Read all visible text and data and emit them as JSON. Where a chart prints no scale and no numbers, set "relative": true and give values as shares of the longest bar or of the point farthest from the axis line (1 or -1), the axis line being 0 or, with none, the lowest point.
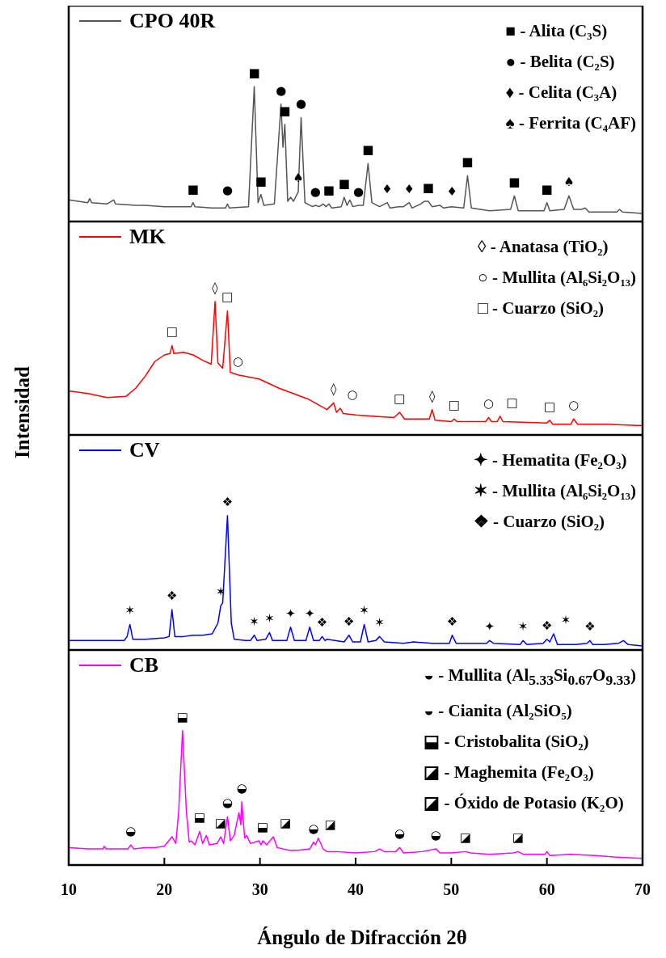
{
  "chart_data": [
    {
      "type": "line",
      "xlim": [
        10,
        70
      ],
      "relative": true,
      "legend": "top left",
      "tick_labels": false,
      "x": [
        10,
        11,
        12,
        12.2,
        12.4,
        14,
        14.7,
        14.9,
        17,
        18,
        20,
        22,
        22.8,
        23,
        23.2,
        25,
        26.4,
        26.6,
        26.8,
        28.8,
        29.4,
        29.8,
        30.1,
        30.4,
        31.5,
        32.2,
        32.4,
        32.6,
        32.9,
        33.2,
        33.5,
        34,
        34.3,
        34.7,
        35.5,
        35.8,
        36.2,
        36.6,
        36.9,
        37.2,
        37.5,
        38.5,
        38.8,
        39.1,
        39.4,
        39.7,
        40.3,
        40.8,
        41.3,
        41.7,
        42.5,
        43.3,
        43.6,
        44.5,
        45,
        45.6,
        45.9,
        46.8,
        47.2,
        47.6,
        48,
        48.8,
        49.2,
        50,
        51.3,
        51.7,
        52.1,
        54,
        56.2,
        56.6,
        57,
        59.7,
        60,
        60.3,
        61.8,
        62.3,
        62.8,
        63.6,
        64,
        64.4,
        67.3,
        67.6,
        67.9,
        70
      ],
      "series": [
        {
          "name": "CPO 40R",
          "color": "#555555",
          "values": [
            0.16,
            0.15,
            0.14,
            0.17,
            0.14,
            0.13,
            0.16,
            0.13,
            0.12,
            0.12,
            0.11,
            0.11,
            0.11,
            0.14,
            0.11,
            0.1,
            0.1,
            0.13,
            0.1,
            0.11,
            1,
            0.14,
            0.2,
            0.12,
            0.13,
            0.87,
            0.55,
            0.72,
            0.15,
            0.18,
            0.15,
            0.22,
            0.77,
            0.14,
            0.11,
            0.12,
            0.11,
            0.13,
            0.11,
            0.13,
            0.1,
            0.11,
            0.18,
            0.12,
            0.16,
            0.11,
            0.12,
            0.12,
            0.43,
            0.14,
            0.11,
            0.14,
            0.1,
            0.11,
            0.11,
            0.14,
            0.1,
            0.13,
            0.15,
            0.15,
            0.11,
            0.12,
            0.1,
            0.11,
            0.1,
            0.34,
            0.1,
            0.08,
            0.09,
            0.19,
            0.08,
            0.08,
            0.14,
            0.08,
            0.09,
            0.19,
            0.09,
            0.09,
            0.1,
            0.07,
            0.07,
            0.09,
            0.07,
            0.06
          ]
        }
      ],
      "annotations": [
        "■ - Alita (C₃S)",
        "● - Belita (C₂S)",
        "♦ - Celita (C₃A)",
        "♠ - Ferrita (C₄AF)",
        {
          "text": "■",
          "x": 23,
          "y": 0.14
        },
        {
          "text": "●",
          "x": 26.6,
          "y": 0.13
        },
        {
          "text": "■",
          "x": 29.4,
          "y": 1
        },
        {
          "text": "■",
          "x": 30.1,
          "y": 0.2
        },
        {
          "text": "●",
          "x": 32.2,
          "y": 0.87
        },
        {
          "text": "■",
          "x": 32.6,
          "y": 0.72
        },
        {
          "text": "♠",
          "x": 34,
          "y": 0.22
        },
        {
          "text": "●",
          "x": 34.3,
          "y": 0.77
        },
        {
          "text": "●",
          "x": 35.8,
          "y": 0.12
        },
        {
          "text": "■",
          "x": 37.2,
          "y": 0.13
        },
        {
          "text": "■",
          "x": 38.8,
          "y": 0.18
        },
        {
          "text": "●",
          "x": 40.3,
          "y": 0.12
        },
        {
          "text": "■",
          "x": 41.3,
          "y": 0.43
        },
        {
          "text": "♦",
          "x": 43.3,
          "y": 0.14
        },
        {
          "text": "♦",
          "x": 45.6,
          "y": 0.14
        },
        {
          "text": "■",
          "x": 47.6,
          "y": 0.15
        },
        {
          "text": "♦",
          "x": 48.8,
          "y": 0.12
        },
        {
          "text": "■",
          "x": 51.7,
          "y": 0.34
        },
        {
          "text": "■",
          "x": 56.6,
          "y": 0.19
        },
        {
          "text": "■",
          "x": 60,
          "y": 0.14
        },
        {
          "text": "♠",
          "x": 62.3,
          "y": 0.19
        }
      ]
    },
    {
      "type": "line",
      "ylabel": "Intensidad",
      "xlim": [
        10,
        70
      ],
      "relative": true,
      "legend": "top left",
      "tick_labels": false,
      "x": [
        10,
        12,
        14,
        16,
        17,
        18,
        19,
        20,
        20.6,
        20.8,
        21,
        22,
        23,
        24,
        24.9,
        25.3,
        25.6,
        26.1,
        26.6,
        26.9,
        27.7,
        29.9,
        32,
        35,
        37,
        37.7,
        38,
        38.4,
        38.7,
        40,
        42,
        44,
        44.6,
        45.1,
        47,
        47.7,
        48,
        48.3,
        50,
        50.3,
        50.6,
        53.6,
        53.9,
        54.2,
        54.8,
        55.1,
        55.4,
        60,
        60.3,
        60.6,
        62.5,
        62.8,
        63.2,
        66,
        70
      ],
      "series": [
        {
          "name": "MK",
          "color": "#ff0000",
          "values": [
            0.33,
            0.31,
            0.28,
            0.29,
            0.35,
            0.44,
            0.55,
            0.6,
            0.61,
            0.67,
            0.61,
            0.62,
            0.6,
            0.56,
            0.53,
            1,
            0.54,
            0.5,
            0.93,
            0.47,
            0.45,
            0.42,
            0.35,
            0.27,
            0.19,
            0.24,
            0.17,
            0.2,
            0.16,
            0.15,
            0.14,
            0.13,
            0.17,
            0.12,
            0.12,
            0.12,
            0.19,
            0.11,
            0.1,
            0.12,
            0.1,
            0.1,
            0.13,
            0.1,
            0.1,
            0.14,
            0.1,
            0.09,
            0.11,
            0.08,
            0.08,
            0.12,
            0.08,
            0.08,
            0.07
          ]
        }
      ],
      "annotations": [
        "◊ - Anatasa (TiO₂)",
        "○ - Mullita (Al₆Si₂O₁₃)",
        "□ - Cuarzo (SiO₂)",
        {
          "text": "□",
          "x": 20.8,
          "y": 0.67
        },
        {
          "text": "◊",
          "x": 25.3,
          "y": 1
        },
        {
          "text": "□",
          "x": 26.6,
          "y": 0.93
        },
        {
          "text": "○",
          "x": 27.7,
          "y": 0.45
        },
        {
          "text": "◊",
          "x": 37.7,
          "y": 0.24
        },
        {
          "text": "○",
          "x": 38.4,
          "y": 0.2
        },
        {
          "text": "□",
          "x": 44.6,
          "y": 0.17
        },
        {
          "text": "◊",
          "x": 48,
          "y": 0.19
        },
        {
          "text": "□",
          "x": 50.3,
          "y": 0.12
        },
        {
          "text": "○",
          "x": 53.9,
          "y": 0.13
        },
        {
          "text": "□",
          "x": 55.1,
          "y": 0.14
        },
        {
          "text": "□",
          "x": 60.3,
          "y": 0.11
        },
        {
          "text": "○",
          "x": 62.8,
          "y": 0.12
        }
      ]
    },
    {
      "type": "line",
      "xlim": [
        10,
        70
      ],
      "relative": true,
      "legend": "top left",
      "tick_labels": false,
      "x": [
        10,
        12,
        14,
        15.8,
        16.1,
        16.4,
        16.7,
        18,
        20,
        20.5,
        20.8,
        21.1,
        22,
        23,
        24,
        25,
        25.6,
        25.9,
        26.1,
        26.6,
        27,
        27.3,
        28.5,
        29,
        29.4,
        29.7,
        30.6,
        31,
        31.3,
        32.8,
        33.2,
        33.6,
        34.8,
        35.2,
        35.6,
        36.2,
        36.5,
        36.8,
        37,
        38.8,
        39.3,
        39.7,
        40.5,
        40.9,
        41.3,
        42.1,
        42.5,
        43,
        45,
        46,
        48,
        49.8,
        50.1,
        50.5,
        52,
        53.7,
        54,
        54.4,
        57.2,
        57.5,
        57.9,
        59.6,
        60,
        60.3,
        60.7,
        61.1,
        63,
        64.2,
        64.5,
        64.8,
        66,
        67.5,
        68,
        68.5,
        70
      ],
      "series": [
        {
          "name": "CV",
          "color": "#0000ff",
          "values": [
            0.07,
            0.07,
            0.07,
            0.07,
            0.1,
            0.19,
            0.08,
            0.08,
            0.09,
            0.1,
            0.3,
            0.1,
            0.1,
            0.11,
            0.11,
            0.12,
            0.2,
            0.33,
            0.35,
            1,
            0.2,
            0.08,
            0.07,
            0.07,
            0.11,
            0.07,
            0.08,
            0.13,
            0.07,
            0.07,
            0.17,
            0.07,
            0.07,
            0.17,
            0.07,
            0.07,
            0.1,
            0.07,
            0.08,
            0.06,
            0.11,
            0.06,
            0.06,
            0.19,
            0.06,
            0.07,
            0.1,
            0.06,
            0.05,
            0.06,
            0.05,
            0.05,
            0.11,
            0.05,
            0.05,
            0.05,
            0.07,
            0.05,
            0.04,
            0.07,
            0.04,
            0.05,
            0.08,
            0.06,
            0.12,
            0.04,
            0.04,
            0.05,
            0.07,
            0.04,
            0.04,
            0.05,
            0.07,
            0.04,
            0.03
          ]
        }
      ],
      "annotations": [
        "✦ - Hematita (Fe₂O₃)",
        "✶ - Mullita (Al₆Si₂O₁₃)",
        "❖ - Cuarzo (SiO₂)",
        {
          "text": "✶",
          "x": 16.4,
          "y": 0.19
        },
        {
          "text": "❖",
          "x": 20.8,
          "y": 0.3
        },
        {
          "text": "✶",
          "x": 25.9,
          "y": 0.33
        },
        {
          "text": "❖",
          "x": 26.6,
          "y": 1
        },
        {
          "text": "✶",
          "x": 29.4,
          "y": 0.11
        },
        {
          "text": "✶",
          "x": 31,
          "y": 0.13
        },
        {
          "text": "✦",
          "x": 33.2,
          "y": 0.17
        },
        {
          "text": "✦",
          "x": 35.2,
          "y": 0.17
        },
        {
          "text": "❖",
          "x": 36.5,
          "y": 0.1
        },
        {
          "text": "❖",
          "x": 39.3,
          "y": 0.11
        },
        {
          "text": "✶",
          "x": 40.9,
          "y": 0.19
        },
        {
          "text": "✶",
          "x": 42.5,
          "y": 0.1
        },
        {
          "text": "❖",
          "x": 50.1,
          "y": 0.11
        },
        {
          "text": "✦",
          "x": 54,
          "y": 0.07
        },
        {
          "text": "✶",
          "x": 57.5,
          "y": 0.07
        },
        {
          "text": "❖",
          "x": 60,
          "y": 0.08
        },
        {
          "text": "✶",
          "x": 60.7,
          "y": 0.12
        },
        {
          "text": "❖",
          "x": 64.5,
          "y": 0.07
        }
      ]
    },
    {
      "type": "line",
      "xlabel": "Ángulo de Difracción 2θ",
      "xlim": [
        10,
        70
      ],
      "xticks": [
        10,
        20,
        30,
        40,
        50,
        60,
        70
      ],
      "relative": true,
      "legend": "top left",
      "tick_labels": "x",
      "x": [
        10,
        12,
        13.6,
        13.7,
        13.9,
        15,
        16.2,
        16.5,
        16.8,
        18,
        19,
        20,
        20.8,
        21.2,
        21.5,
        21.9,
        22.3,
        22.6,
        22.8,
        23.2,
        23.7,
        24,
        24.4,
        24.7,
        25.5,
        25.9,
        26.2,
        26.6,
        26.9,
        27.3,
        27.8,
        28,
        28.1,
        28.4,
        28.6,
        29,
        29.9,
        30.1,
        30.3,
        30.7,
        31.4,
        31.8,
        33,
        34,
        35.2,
        35.6,
        35.8,
        36.1,
        36.6,
        37,
        38,
        40,
        42,
        42.5,
        43,
        44.2,
        44.6,
        45,
        47,
        48.4,
        48.8,
        50,
        51.5,
        52,
        54,
        56.5,
        57,
        57.5,
        59.8,
        60,
        60.3,
        62.5,
        65,
        67,
        70
      ],
      "series": [
        {
          "name": "CB",
          "color": "#ff00ff",
          "values": [
            0.13,
            0.12,
            0.12,
            0.14,
            0.12,
            0.12,
            0.12,
            0.15,
            0.12,
            0.13,
            0.13,
            0.14,
            0.21,
            0.16,
            0.4,
            1,
            0.4,
            0.17,
            0.18,
            0.15,
            0.25,
            0.16,
            0.22,
            0.15,
            0.16,
            0.21,
            0.16,
            0.36,
            0.18,
            0.22,
            0.39,
            0.3,
            0.47,
            0.2,
            0.22,
            0.16,
            0.18,
            0.15,
            0.18,
            0.15,
            0.21,
            0.13,
            0.11,
            0.11,
            0.12,
            0.17,
            0.15,
            0.2,
            0.12,
            0.1,
            0.1,
            0.09,
            0.1,
            0.12,
            0.1,
            0.1,
            0.13,
            0.09,
            0.1,
            0.12,
            0.09,
            0.09,
            0.1,
            0.09,
            0.08,
            0.09,
            0.1,
            0.08,
            0.08,
            0.1,
            0.07,
            0.08,
            0.07,
            0.06,
            0.05
          ]
        }
      ],
      "annotations": [
        "◒ - Mullita (Al$_{5.33}$Si$_{0.67}$O$_{9.33}$)",
        "◒ - Cianita (Al₂SiO₅)",
        "⬓ - Cristobalita (SiO₂)",
        "◪ - Maghemita (Fe₂O₃)",
        "◪ - Óxido de Potasio (K₂O)",
        {
          "text": "◒",
          "x": 16.5,
          "y": 0.15
        },
        {
          "text": "⬓",
          "x": 21.9,
          "y": 1
        },
        {
          "text": "⬓",
          "x": 23.7,
          "y": 0.25
        },
        {
          "text": "◪",
          "x": 25.9,
          "y": 0.21
        },
        {
          "text": "◒",
          "x": 26.6,
          "y": 0.36
        },
        {
          "text": "◒",
          "x": 28.1,
          "y": 0.47
        },
        {
          "text": "⬓",
          "x": 30.3,
          "y": 0.18
        },
        {
          "text": "◪",
          "x": 31.4,
          "y": 0.21
        },
        {
          "text": "◒",
          "x": 35.6,
          "y": 0.17
        },
        {
          "text": "◪",
          "x": 36.1,
          "y": 0.2
        },
        {
          "text": "◒",
          "x": 44.6,
          "y": 0.13
        },
        {
          "text": "◒",
          "x": 48.4,
          "y": 0.12
        },
        {
          "text": "◪",
          "x": 51.5,
          "y": 0.1
        },
        {
          "text": "◪",
          "x": 57,
          "y": 0.1
        }
      ]
    }
  ]
}
